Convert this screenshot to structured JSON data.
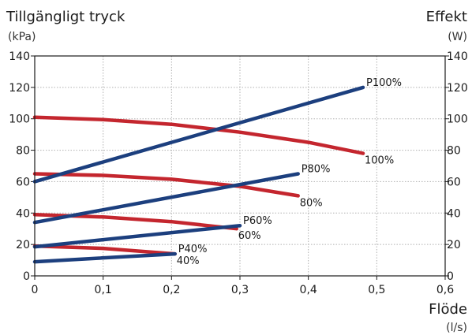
{
  "chart_data": {
    "type": "line",
    "title_left": "Tillgängligt tryck",
    "unit_left": "(kPa)",
    "title_right": "Effekt",
    "unit_right": "(W)",
    "xlabel": "Flöde",
    "xunit": "(l/s)",
    "xlim": [
      0,
      0.6
    ],
    "ylim_left": [
      0,
      140
    ],
    "ylim_right": [
      0,
      140
    ],
    "x_ticks": [
      "0",
      "0,1",
      "0,2",
      "0,3",
      "0,4",
      "0,5",
      "0,6"
    ],
    "y_ticks_left": [
      "0",
      "20",
      "40",
      "60",
      "80",
      "100",
      "120",
      "140"
    ],
    "y_ticks_right": [
      "0",
      "20",
      "40",
      "60",
      "80",
      "100",
      "120",
      "140"
    ],
    "grid": true,
    "colors": {
      "pressure": "#c4262e",
      "power": "#1c3f7e"
    },
    "series": [
      {
        "name": "100%",
        "kind": "pressure",
        "axis": "left",
        "points": [
          [
            0,
            101
          ],
          [
            0.1,
            99.5
          ],
          [
            0.2,
            96.5
          ],
          [
            0.3,
            91.5
          ],
          [
            0.4,
            85
          ],
          [
            0.48,
            78
          ]
        ]
      },
      {
        "name": "80%",
        "kind": "pressure",
        "axis": "left",
        "points": [
          [
            0,
            65
          ],
          [
            0.1,
            64
          ],
          [
            0.2,
            61.5
          ],
          [
            0.3,
            57
          ],
          [
            0.385,
            51
          ]
        ]
      },
      {
        "name": "60%",
        "kind": "pressure",
        "axis": "left",
        "points": [
          [
            0,
            39
          ],
          [
            0.1,
            37.5
          ],
          [
            0.2,
            34.5
          ],
          [
            0.295,
            30
          ]
        ]
      },
      {
        "name": "40%",
        "kind": "pressure",
        "axis": "left",
        "points": [
          [
            0,
            19
          ],
          [
            0.1,
            17.5
          ],
          [
            0.205,
            14
          ]
        ]
      },
      {
        "name": "P100%",
        "kind": "power",
        "axis": "right",
        "points": [
          [
            0,
            60
          ],
          [
            0.48,
            120
          ]
        ]
      },
      {
        "name": "P80%",
        "kind": "power",
        "axis": "right",
        "points": [
          [
            0,
            34
          ],
          [
            0.385,
            65
          ]
        ]
      },
      {
        "name": "P60%",
        "kind": "power",
        "axis": "right",
        "points": [
          [
            0,
            18.5
          ],
          [
            0.3,
            32
          ]
        ]
      },
      {
        "name": "P40%",
        "kind": "power",
        "axis": "right",
        "points": [
          [
            0,
            9
          ],
          [
            0.205,
            14
          ]
        ]
      }
    ]
  }
}
